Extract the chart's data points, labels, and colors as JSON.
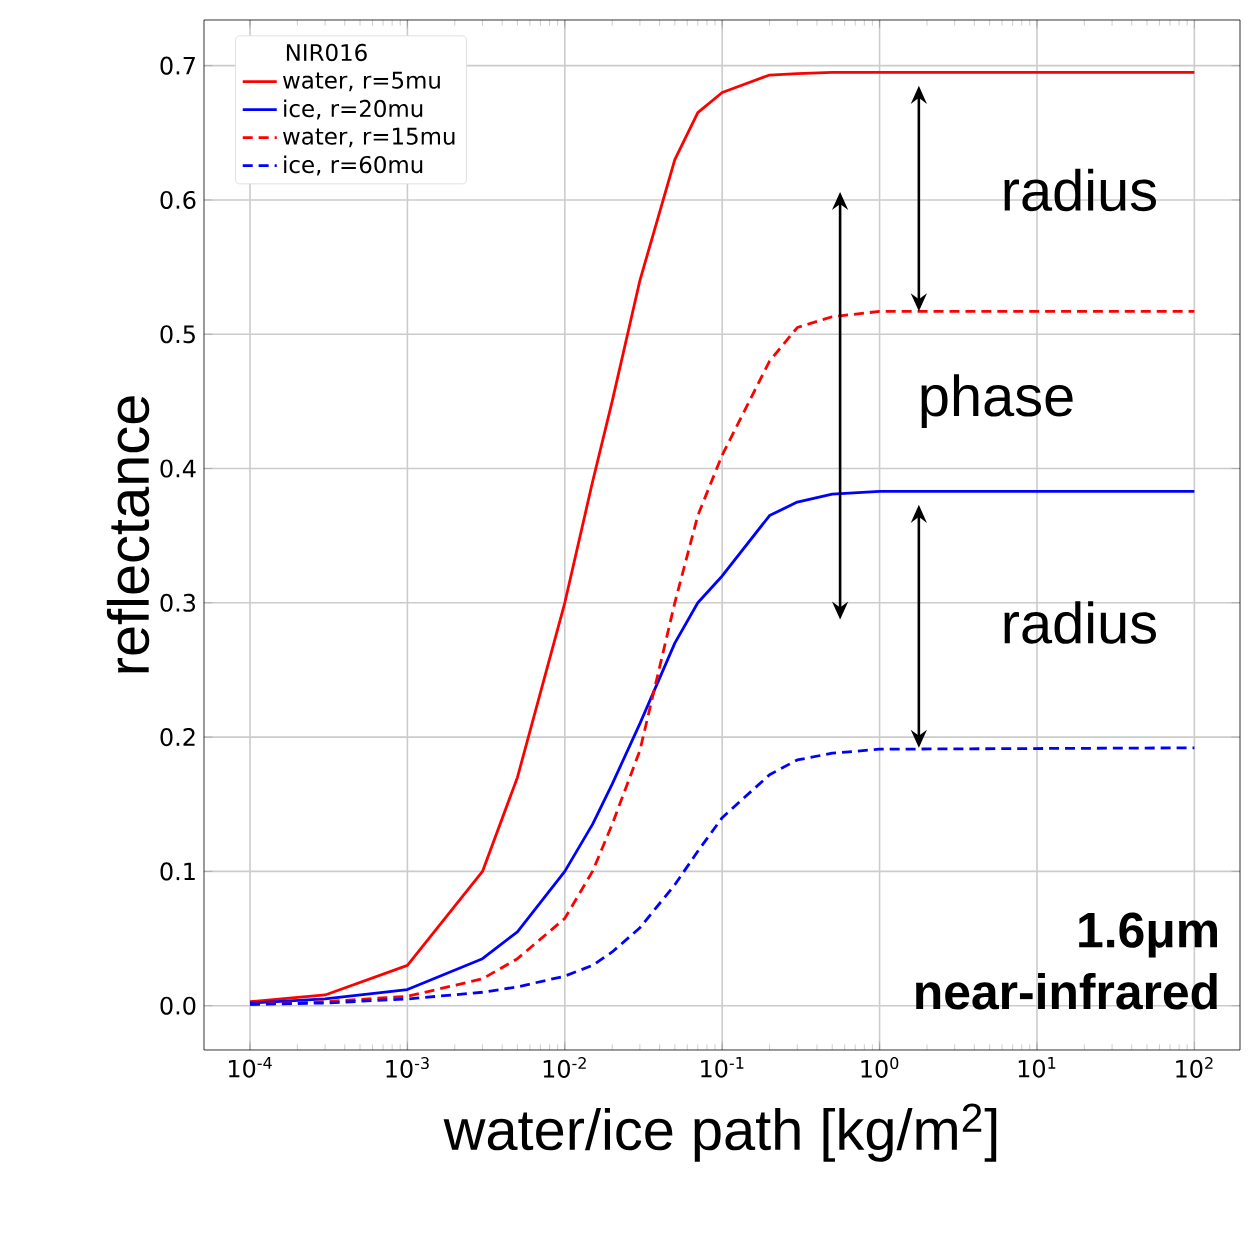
{
  "chart_data": {
    "type": "line",
    "xlabel": "water/ice path [kg/m$^{2}$]",
    "ylabel": "reflectance",
    "legend_title": "NIR016",
    "legend": "top left",
    "grid": true,
    "log": "x",
    "xlim": [
      5.1e-05,
      195
    ],
    "ylim": [
      -0.033,
      0.734
    ],
    "xticks": [
      {
        "value": 0.0001,
        "label": "10$^{-4}$"
      },
      {
        "value": 0.001,
        "label": "10$^{-3}$"
      },
      {
        "value": 0.01,
        "label": "10$^{-2}$"
      },
      {
        "value": 0.1,
        "label": "10$^{-1}$"
      },
      {
        "value": 1,
        "label": "10$^{0}$"
      },
      {
        "value": 10,
        "label": "10$^{1}$"
      },
      {
        "value": 100,
        "label": "10$^{2}$"
      }
    ],
    "yticks": [
      {
        "value": 0,
        "label": "0.0"
      },
      {
        "value": 0.1,
        "label": "0.1"
      },
      {
        "value": 0.2,
        "label": "0.2"
      },
      {
        "value": 0.3,
        "label": "0.3"
      },
      {
        "value": 0.4,
        "label": "0.4"
      },
      {
        "value": 0.5,
        "label": "0.5"
      },
      {
        "value": 0.6,
        "label": "0.6"
      },
      {
        "value": 0.7,
        "label": "0.7"
      }
    ],
    "x": [
      0.0001,
      0.0003,
      0.001,
      0.003,
      0.005,
      0.01,
      0.015,
      0.02,
      0.03,
      0.05,
      0.07,
      0.1,
      0.2,
      0.3,
      0.5,
      1,
      100
    ],
    "series": [
      {
        "name": "water, r=5mu",
        "color": "#ff0000",
        "line_style": "solid",
        "values": [
          0.003,
          0.008,
          0.03,
          0.1,
          0.17,
          0.3,
          0.39,
          0.45,
          0.54,
          0.63,
          0.665,
          0.68,
          0.693,
          0.694,
          0.695,
          0.695,
          0.695
        ]
      },
      {
        "name": "ice, r=20mu",
        "color": "#0000ff",
        "line_style": "solid",
        "values": [
          0.002,
          0.005,
          0.012,
          0.035,
          0.055,
          0.1,
          0.135,
          0.165,
          0.21,
          0.27,
          0.3,
          0.32,
          0.365,
          0.375,
          0.381,
          0.383,
          0.383
        ]
      },
      {
        "name": "water, r=15mu",
        "color": "#ff0000",
        "line_style": "dashed",
        "values": [
          0.001,
          0.003,
          0.007,
          0.02,
          0.035,
          0.065,
          0.1,
          0.135,
          0.19,
          0.3,
          0.365,
          0.41,
          0.48,
          0.505,
          0.513,
          0.517,
          0.517
        ]
      },
      {
        "name": "ice, r=60mu",
        "color": "#0000ff",
        "line_style": "dashed",
        "values": [
          0.001,
          0.002,
          0.005,
          0.01,
          0.014,
          0.022,
          0.03,
          0.04,
          0.058,
          0.09,
          0.115,
          0.14,
          0.172,
          0.183,
          0.188,
          0.191,
          0.192
        ]
      }
    ],
    "annotations": [
      "radius",
      "phase",
      "radius",
      "**1.6μm**",
      "**near-infrared**"
    ]
  }
}
